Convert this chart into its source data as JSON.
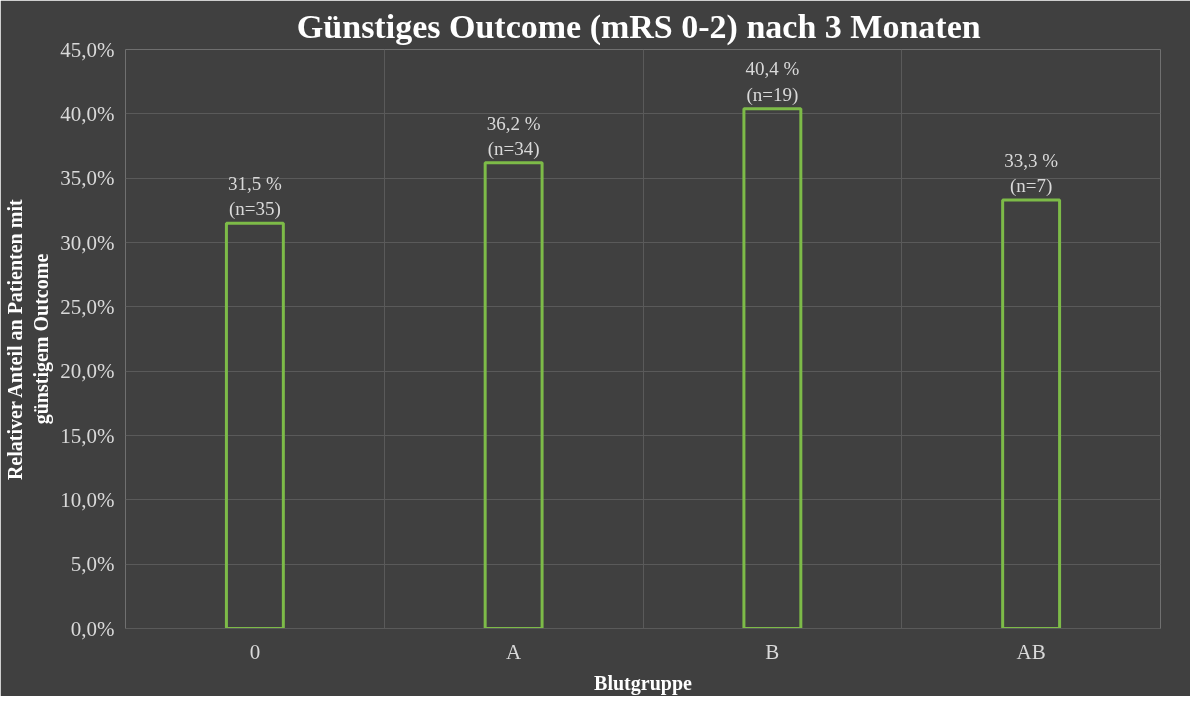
{
  "chart_data": {
    "type": "bar",
    "title": "Günstiges Outcome  (mRS 0-2) nach 3 Monaten",
    "xlabel": "Blutgruppe",
    "ylabel": "Relativer Anteil an Patienten mit günstigem Outcome",
    "categories": [
      "0",
      "A",
      "B",
      "AB"
    ],
    "series": [
      {
        "color": "#7dbb48",
        "values": [
          31.5,
          36.2,
          40.4,
          33.3
        ],
        "value_labels": [
          "31,5 %\n(n=35)",
          "36,2 %\n(n=34)",
          "40,4 %\n(n=19)",
          "33,3 %\n(n=7)"
        ]
      }
    ],
    "ylim": [
      0,
      45
    ],
    "yticks": [
      {
        "value": 0,
        "label": "0,0%"
      },
      {
        "value": 5,
        "label": "5,0%"
      },
      {
        "value": 10,
        "label": "10,0%"
      },
      {
        "value": 15,
        "label": "15,0%"
      },
      {
        "value": 20,
        "label": "20,0%"
      },
      {
        "value": 25,
        "label": "25,0%"
      },
      {
        "value": 30,
        "label": "30,0%"
      },
      {
        "value": 35,
        "label": "35,0%"
      },
      {
        "value": 40,
        "label": "40,0%"
      },
      {
        "value": 45,
        "label": "45,0%"
      }
    ],
    "grid": true
  }
}
